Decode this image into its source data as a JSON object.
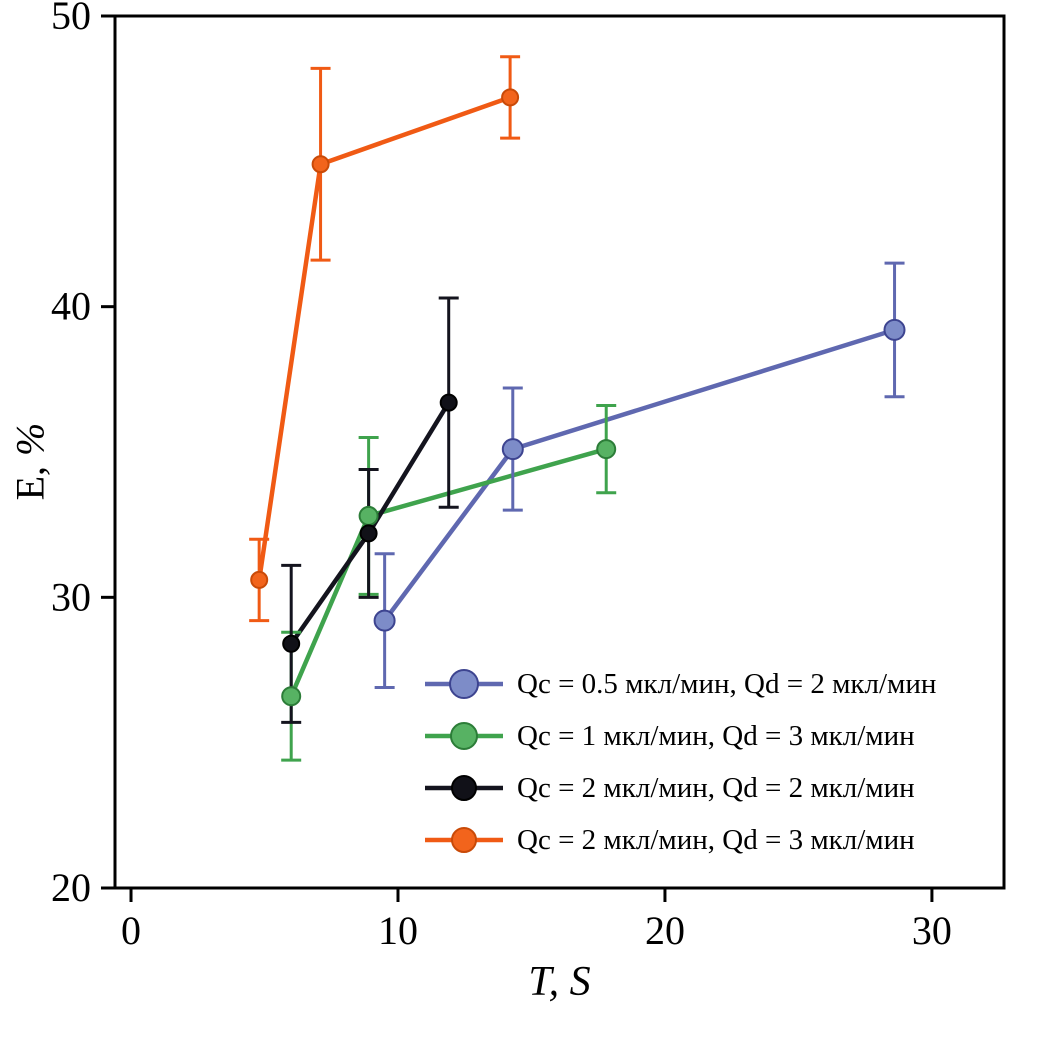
{
  "figure": {
    "background": "#ffffff",
    "frame_color": "#000000"
  },
  "chart_data": {
    "type": "line",
    "title": "",
    "xlabel": "T, S",
    "ylabel_letter": "E, ",
    "ylabel_unit": "%",
    "xlim": [
      -0.6,
      32.7
    ],
    "ylim": [
      20,
      50
    ],
    "xticks": [
      "0",
      "10",
      "20",
      "30"
    ],
    "xtick_values": [
      0,
      10,
      20,
      30
    ],
    "yticks": [
      "20",
      "30",
      "40",
      "50"
    ],
    "ytick_values": [
      20,
      30,
      40,
      50
    ],
    "grid": false,
    "legend_position": "inside-lower-right",
    "series": [
      {
        "name": "Qc = 0.5 мкл/мин, Qd = 2 мкл/мин",
        "color": "#5f68b0",
        "marker_fill": "#7d8cc8",
        "marker_stroke": "#3d4490",
        "marker_size": 10,
        "x": [
          9.5,
          14.3,
          28.6
        ],
        "y": [
          29.2,
          35.1,
          39.2
        ],
        "yerr": [
          2.3,
          2.1,
          2.3
        ]
      },
      {
        "name": "Qc = 1 мкл/мин, Qd = 3 мкл/мин",
        "color": "#3fa34d",
        "marker_fill": "#57b263",
        "marker_stroke": "#2c7d38",
        "marker_size": 9,
        "x": [
          6.0,
          8.9,
          17.8
        ],
        "y": [
          26.6,
          32.8,
          35.1
        ],
        "yerr": [
          2.2,
          2.7,
          1.5
        ]
      },
      {
        "name": "Qc = 2 мкл/мин, Qd = 2 мкл/мин",
        "color": "#14141e",
        "marker_fill": "#111118",
        "marker_stroke": "#000000",
        "marker_size": 8,
        "x": [
          6.0,
          8.9,
          11.9
        ],
        "y": [
          28.4,
          32.2,
          36.7
        ],
        "yerr": [
          2.7,
          2.2,
          3.6
        ]
      },
      {
        "name": "Qc = 2 мкл/мин, Qd = 3 мкл/мин",
        "color": "#f05a14",
        "marker_fill": "#f2641c",
        "marker_stroke": "#c94a08",
        "marker_size": 8,
        "x": [
          4.8,
          7.1,
          14.2
        ],
        "y": [
          30.6,
          44.9,
          47.2
        ],
        "yerr": [
          1.4,
          3.3,
          1.4
        ]
      }
    ]
  }
}
